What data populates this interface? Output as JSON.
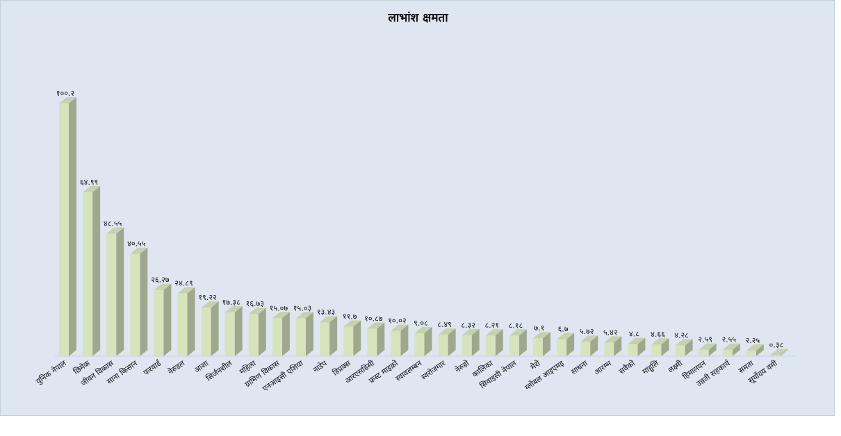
{
  "chart_data": {
    "type": "bar",
    "title": "लाभांश क्षमता",
    "xlabel": "",
    "ylabel": "",
    "ylim": [
      0,
      100.2
    ],
    "grid": false,
    "legend": "none",
    "bar_color": "#d6e4bc",
    "categories": [
      "युनिक नेपाल",
      "छिमेक",
      "जीवन विकास",
      "साना किसान",
      "फरवार्ड",
      "नेरुडल",
      "आशा",
      "सिर्जनशील",
      "महिला",
      "ग्रामिण विकास",
      "एनआइसी एशिया",
      "नाडेप",
      "डिप्रक्स",
      "आरएसडिसी",
      "फ्रस्ट माइक्रो",
      "स्वावलम्बन",
      "स्वरोजगार",
      "नेरुडो",
      "कालिका",
      "सिवाइसी नेपाल",
      "मेरो",
      "ग्लोबल आइएमइ",
      "साधना",
      "आरम्भ",
      "सवैको",
      "माहुलि",
      "लक्ष्मी",
      "हिमालयन",
      "उन्नती सहकार्य",
      "समता",
      "सूर्योदय वमी"
    ],
    "values": [
      100.2,
      64.99,
      48.55,
      40.55,
      26.27,
      24.89,
      19.22,
      17.38,
      16.73,
      15.07,
      15.03,
      13.43,
      11.7,
      10.87,
      10.02,
      9.08,
      8.49,
      8.32,
      8.21,
      8.18,
      7.1,
      6.7,
      5.72,
      5.42,
      4.8,
      4.66,
      4.28,
      2.59,
      2.55,
      2.25,
      0.38
    ],
    "labels": [
      "१००.२",
      "६४.९९",
      "४८.५५",
      "४०.५५",
      "२६.२७",
      "२४.८९",
      "१९.२२",
      "१७.३८",
      "१६.७३",
      "१५.०७",
      "१५.०३",
      "१३.४३",
      "११.७",
      "१०.८७",
      "१०.०२",
      "९.०८",
      "८.४९",
      "८.३२",
      "८.२१",
      "८.१८",
      "७.१",
      "६.७",
      "५.७२",
      "५.४२",
      "४.८",
      "४.६६",
      "४.२८",
      "२.५९",
      "२.५५",
      "२.२५",
      "०.३८"
    ]
  }
}
